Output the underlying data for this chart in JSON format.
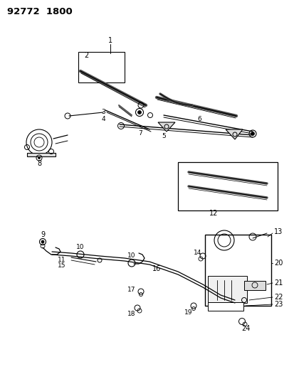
{
  "title": "92772  1800",
  "bg_color": "#ffffff",
  "line_color": "#000000",
  "fig_width": 4.14,
  "fig_height": 5.33,
  "dpi": 100
}
